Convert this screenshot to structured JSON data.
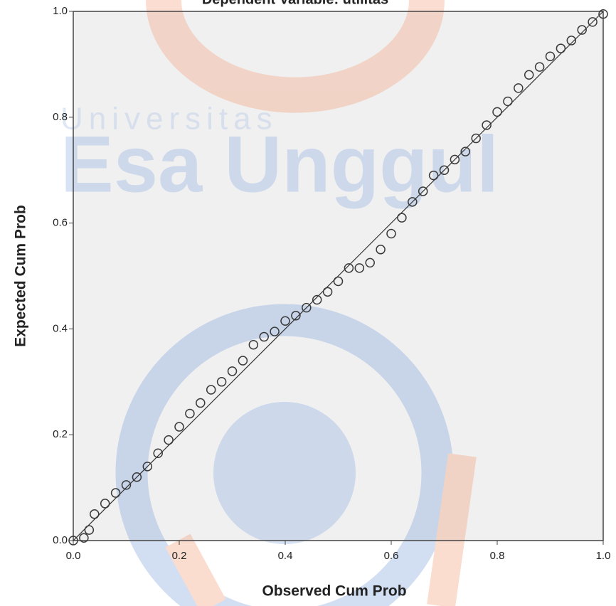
{
  "chart_data": {
    "type": "scatter",
    "title": "Dependent Variable: utilitas",
    "x_label": "Observed Cum Prob",
    "y_label": "Expected Cum Prob",
    "x": [
      0,
      0.02,
      0.03,
      0.04,
      0.06,
      0.08,
      0.1,
      0.12,
      0.14,
      0.16,
      0.18,
      0.2,
      0.22,
      0.24,
      0.26,
      0.28,
      0.3,
      0.32,
      0.34,
      0.36,
      0.38,
      0.4,
      0.42,
      0.44,
      0.46,
      0.48,
      0.5,
      0.52,
      0.54,
      0.56,
      0.58,
      0.6,
      0.62,
      0.64,
      0.66,
      0.68,
      0.7,
      0.72,
      0.74,
      0.76,
      0.78,
      0.8,
      0.82,
      0.84,
      0.86,
      0.88,
      0.9,
      0.92,
      0.94,
      0.96,
      0.98,
      1.0
    ],
    "series": [
      {
        "color": "#3a3a3a",
        "values": [
          0,
          0.005,
          0.02,
          0.05,
          0.07,
          0.09,
          0.105,
          0.12,
          0.14,
          0.165,
          0.19,
          0.215,
          0.24,
          0.26,
          0.285,
          0.3,
          0.32,
          0.34,
          0.37,
          0.385,
          0.395,
          0.415,
          0.425,
          0.44,
          0.455,
          0.47,
          0.49,
          0.515,
          0.515,
          0.525,
          0.55,
          0.58,
          0.61,
          0.64,
          0.66,
          0.69,
          0.7,
          0.72,
          0.735,
          0.76,
          0.785,
          0.81,
          0.83,
          0.855,
          0.88,
          0.895,
          0.915,
          0.93,
          0.945,
          0.965,
          0.98,
          0.995
        ]
      }
    ],
    "xlim": [
      0,
      1
    ],
    "ylim": [
      0,
      1
    ],
    "xticks": [
      {
        "value": 0,
        "label": "0.0"
      },
      0.2,
      0.4,
      0.6,
      0.8,
      {
        "value": 1,
        "label": "1.0"
      }
    ],
    "yticks": [
      {
        "value": 0,
        "label": "0.0"
      },
      0.2,
      0.4,
      0.6,
      0.8,
      {
        "value": 1,
        "label": "1.0"
      }
    ],
    "reference_line": true
  },
  "watermark": {
    "line1": "Universitas",
    "line2": "Esa Unggul"
  }
}
